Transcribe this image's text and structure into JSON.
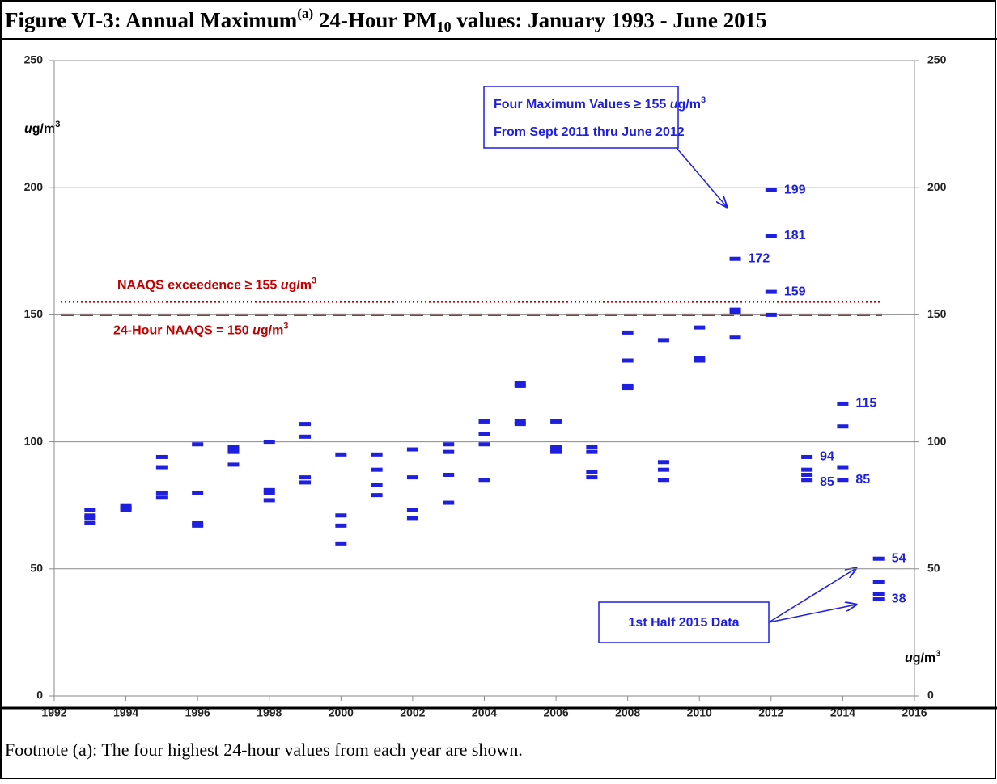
{
  "chart_data": {
    "type": "scatter",
    "title": [
      "Figure VI-3:  Annual Maximum",
      "(a)",
      " 24-Hour PM",
      "10",
      " values: January 1993 - June 2015"
    ],
    "ylabel": [
      "u",
      "g/m",
      "3"
    ],
    "y2label": [
      "u",
      "g/m",
      "3"
    ],
    "x": [
      1993,
      1994,
      1995,
      1996,
      1997,
      1998,
      1999,
      2000,
      2001,
      2002,
      2003,
      2004,
      2005,
      2006,
      2007,
      2008,
      2009,
      2010,
      2011,
      2012,
      2013,
      2014,
      2015
    ],
    "values": [
      [
        73,
        71,
        70,
        68
      ],
      [
        75,
        74,
        74,
        73
      ],
      [
        94,
        90,
        80,
        78
      ],
      [
        99,
        80,
        68,
        67
      ],
      [
        98,
        97,
        96,
        91
      ],
      [
        100,
        81,
        80,
        77
      ],
      [
        107,
        102,
        86,
        84
      ],
      [
        95,
        71,
        67,
        60
      ],
      [
        95,
        89,
        83,
        79
      ],
      [
        97,
        86,
        73,
        70
      ],
      [
        99,
        96,
        87,
        76
      ],
      [
        108,
        103,
        99,
        85
      ],
      [
        123,
        122,
        108,
        107
      ],
      [
        108,
        98,
        97,
        96
      ],
      [
        98,
        96,
        88,
        86
      ],
      [
        143,
        132,
        122,
        121
      ],
      [
        140,
        92,
        89,
        85
      ],
      [
        145,
        133,
        132,
        132
      ],
      [
        172,
        152,
        151,
        141
      ],
      [
        199,
        181,
        159,
        150
      ],
      [
        94,
        89,
        87,
        85
      ],
      [
        115,
        106,
        90,
        85
      ],
      [
        54,
        45,
        40,
        38
      ]
    ],
    "color": "#1f1fe0",
    "xlim": [
      1992,
      2016
    ],
    "xticks": [
      1992,
      1994,
      1996,
      1998,
      2000,
      2002,
      2004,
      2006,
      2008,
      2010,
      2012,
      2014,
      2016
    ],
    "ylim": [
      0,
      250
    ],
    "yticks": [
      0,
      50,
      100,
      150,
      200,
      250
    ],
    "y2lim": [
      0,
      250
    ],
    "y2ticks": [
      0,
      50,
      100,
      150,
      200,
      250
    ],
    "grid": true,
    "reference_lines": [
      {
        "value": 150,
        "color": "#c00000",
        "style": "dashed",
        "label": [
          "24-Hour  NAAQS = 150  ",
          "u",
          "g/m",
          "3"
        ]
      },
      {
        "value": 155,
        "color": "#c00000",
        "style": "dotted",
        "label": [
          "NAAQS exceedence  ≥ 155  ",
          "u",
          "g/m",
          "3"
        ]
      }
    ],
    "annotations": [
      {
        "lines": [
          [
            "Four Maximum Values ≥ 155  ",
            "u",
            "g/m",
            "3"
          ],
          [
            "From Sept 2011 thru June 2012"
          ]
        ]
      },
      {
        "lines": [
          [
            "1st Half 2015  Data"
          ]
        ]
      }
    ],
    "footnote": "Footnote (a):  The four highest 24-hour values from each year are shown."
  }
}
